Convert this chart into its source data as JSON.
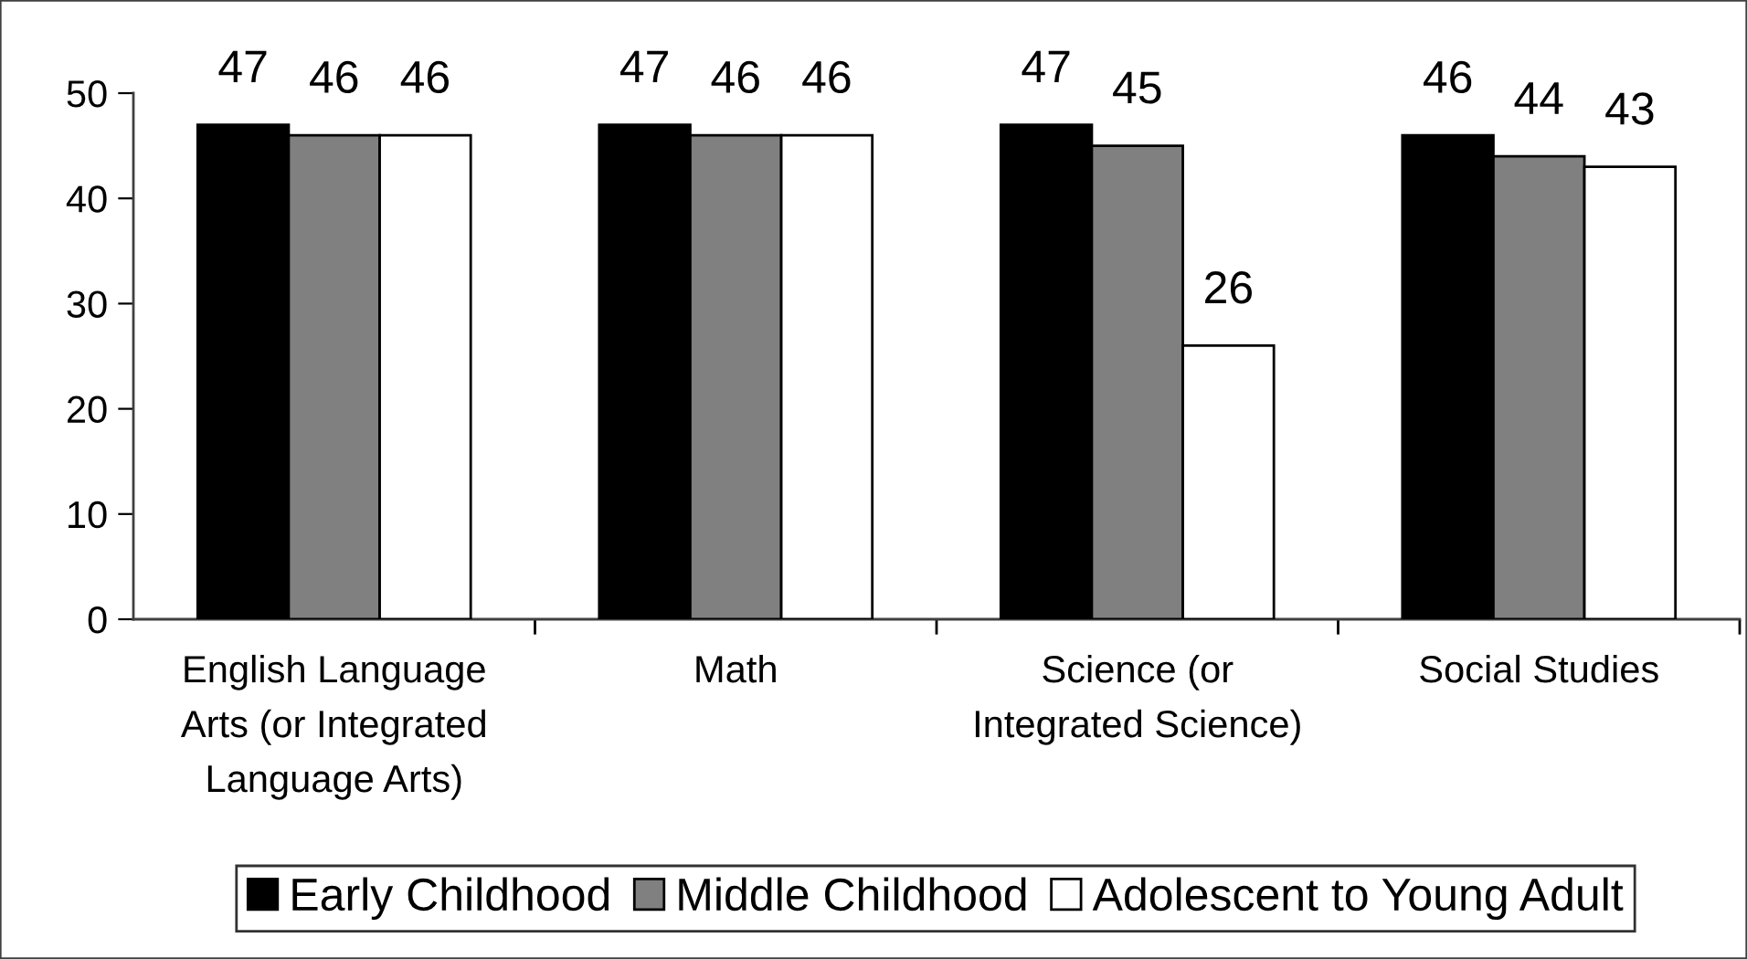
{
  "chart_data": {
    "type": "bar",
    "categories": [
      "English Language\nArts (or Integrated\nLanguage Arts)",
      "Math",
      "Science (or\nIntegrated Science)",
      "Social Studies"
    ],
    "series": [
      {
        "name": "Early Childhood",
        "color": "#000000",
        "values": [
          47,
          47,
          47,
          46
        ]
      },
      {
        "name": "Middle Childhood",
        "color": "#808080",
        "values": [
          46,
          46,
          45,
          44
        ]
      },
      {
        "name": "Adolescent to Young Adult",
        "color": "#ffffff",
        "values": [
          46,
          46,
          26,
          43
        ]
      }
    ],
    "ylim": [
      0,
      50
    ],
    "yticks": [
      0,
      10,
      20,
      30,
      40,
      50
    ],
    "legend": "bottom",
    "data_labels": true
  }
}
